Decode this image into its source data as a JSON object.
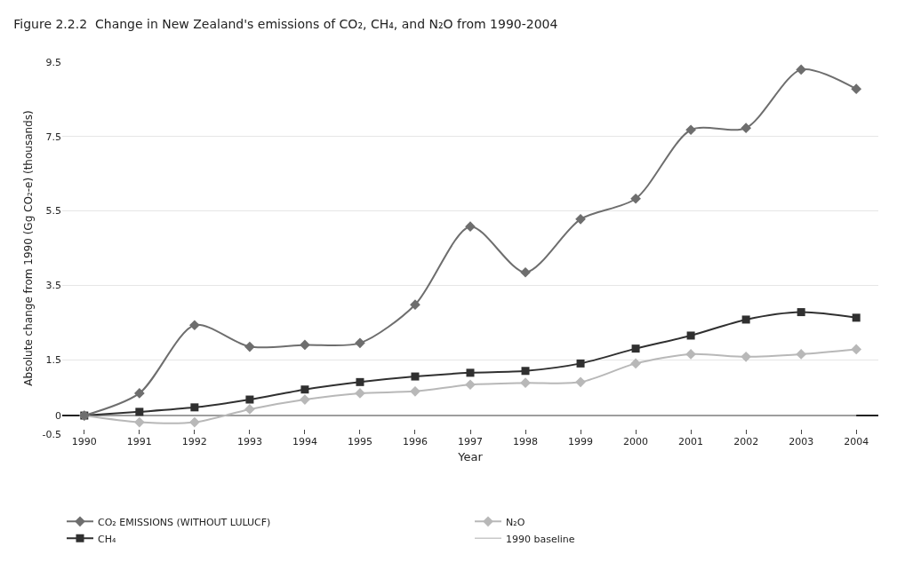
{
  "chart_data": {
    "type": "line",
    "title": "Figure 2.2.2  Change in New Zealand's emissions of CO₂, CH₄, and N₂O from 1990-2004",
    "xlabel": "Year",
    "ylabel": "Absolute change from 1990 (Gg CO₂-e) (thousands)",
    "categories": [
      "1990",
      "1991",
      "1992",
      "1993",
      "1994",
      "1995",
      "1996",
      "1997",
      "1998",
      "1999",
      "2000",
      "2001",
      "2002",
      "2003",
      "2004"
    ],
    "series": [
      {
        "name": "CO₂ EMISSIONS (WITHOUT LULUCF)",
        "color": "#6e6e6e",
        "marker": "diamond",
        "values": [
          0,
          0.6,
          2.43,
          1.85,
          1.9,
          1.95,
          2.98,
          5.08,
          3.85,
          5.28,
          5.83,
          7.68,
          7.73,
          9.3,
          8.78
        ]
      },
      {
        "name": "N₂O",
        "color": "#b8b8b8",
        "marker": "diamond",
        "values": [
          0,
          -0.18,
          -0.18,
          0.17,
          0.43,
          0.6,
          0.65,
          0.83,
          0.88,
          0.9,
          1.4,
          1.65,
          1.58,
          1.65,
          1.78
        ]
      },
      {
        "name": "CH₄",
        "color": "#303030",
        "marker": "square",
        "values": [
          0,
          0.1,
          0.22,
          0.43,
          0.7,
          0.9,
          1.05,
          1.15,
          1.2,
          1.4,
          1.8,
          2.15,
          2.58,
          2.78,
          2.63
        ]
      },
      {
        "name": "1990 baseline",
        "color": "#c8c8c8",
        "marker": "none",
        "values": [
          0,
          0,
          0,
          0,
          0,
          0,
          0,
          0,
          0,
          0,
          0,
          0,
          0,
          0,
          0
        ]
      }
    ],
    "ylim": [
      -0.5,
      9.5
    ],
    "yticks": [
      -0.5,
      0,
      1.5,
      3.5,
      5.5,
      7.5,
      9.5
    ],
    "grid": "y",
    "legend": "bottom",
    "line_style": "solid"
  }
}
